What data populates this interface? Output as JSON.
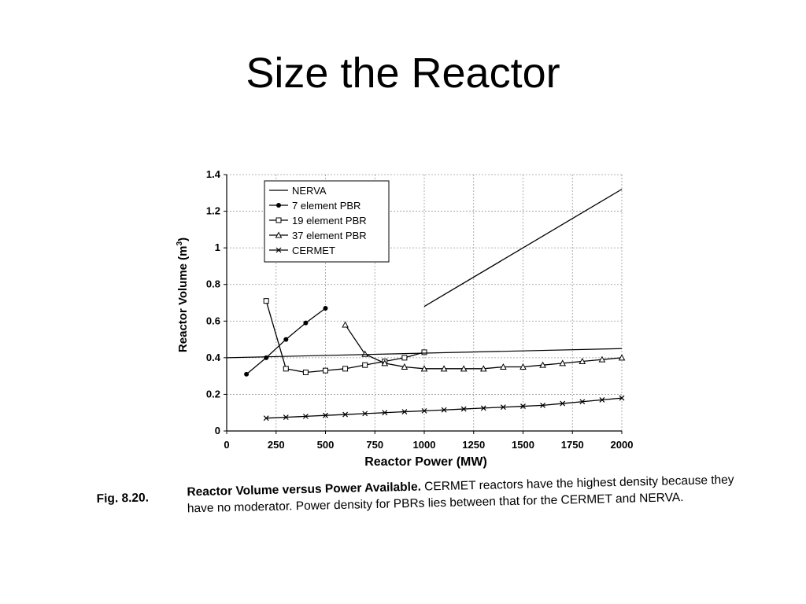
{
  "slide": {
    "title": "Size the Reactor"
  },
  "chart_data": {
    "type": "line",
    "xlabel": "Reactor Power (MW)",
    "ylabel": "Reactor Volume (m³)",
    "ylabel_base": "Reactor Volume (m",
    "ylabel_sup": "3",
    "ylabel_tail": ")",
    "xlim": [
      0,
      2000
    ],
    "ylim": [
      0,
      1.4
    ],
    "x_ticks": [
      0,
      250,
      500,
      750,
      1000,
      1250,
      1500,
      1750,
      2000
    ],
    "x_tick_labels": [
      "0",
      "250",
      "500",
      "750",
      "1000",
      "1250",
      "1500",
      "1750",
      "2000"
    ],
    "y_ticks": [
      0,
      0.2,
      0.4,
      0.6,
      0.8,
      1.0,
      1.2,
      1.4
    ],
    "y_tick_labels": [
      "0",
      "0.2",
      "0.4",
      "0.6",
      "0.8",
      "1",
      "1.2",
      "1.4"
    ],
    "grid": true,
    "legend_position": "top-left",
    "series": [
      {
        "name": "NERVA",
        "marker": "none",
        "x": [
          1000,
          2000
        ],
        "y": [
          0.68,
          1.32
        ]
      },
      {
        "name": "7 element PBR",
        "marker": "dot",
        "x": [
          100,
          200,
          300,
          400,
          500
        ],
        "y": [
          0.31,
          0.4,
          0.5,
          0.59,
          0.67
        ]
      },
      {
        "name": "19 element PBR",
        "marker": "square",
        "x": [
          200,
          300,
          400,
          500,
          600,
          700,
          800,
          900,
          1000
        ],
        "y": [
          0.71,
          0.34,
          0.32,
          0.33,
          0.34,
          0.36,
          0.38,
          0.4,
          0.43
        ]
      },
      {
        "name": "37 element PBR",
        "marker": "triangle",
        "x": [
          600,
          700,
          800,
          900,
          1000,
          1100,
          1200,
          1300,
          1400,
          1500,
          1600,
          1700,
          1800,
          1900,
          2000
        ],
        "y": [
          0.58,
          0.42,
          0.37,
          0.35,
          0.34,
          0.34,
          0.34,
          0.34,
          0.35,
          0.35,
          0.36,
          0.37,
          0.38,
          0.39,
          0.4
        ]
      },
      {
        "name": "CERMET",
        "marker": "x",
        "x": [
          200,
          300,
          400,
          500,
          600,
          700,
          800,
          900,
          1000,
          1100,
          1200,
          1300,
          1400,
          1500,
          1600,
          1700,
          1800,
          1900,
          2000
        ],
        "y": [
          0.07,
          0.075,
          0.08,
          0.085,
          0.09,
          0.095,
          0.1,
          0.105,
          0.11,
          0.115,
          0.12,
          0.125,
          0.13,
          0.135,
          0.14,
          0.15,
          0.16,
          0.17,
          0.18
        ]
      }
    ],
    "extra_lines": [
      {
        "x": [
          0,
          2000
        ],
        "y": [
          0.4,
          0.45
        ]
      }
    ]
  },
  "caption": {
    "label": "Fig. 8.20.",
    "bold_text": "Reactor Volume versus Power Available.",
    "text": " CERMET reactors have the highest density because they have no moderator. Power density for PBRs lies between that for the CERMET and NERVA."
  }
}
